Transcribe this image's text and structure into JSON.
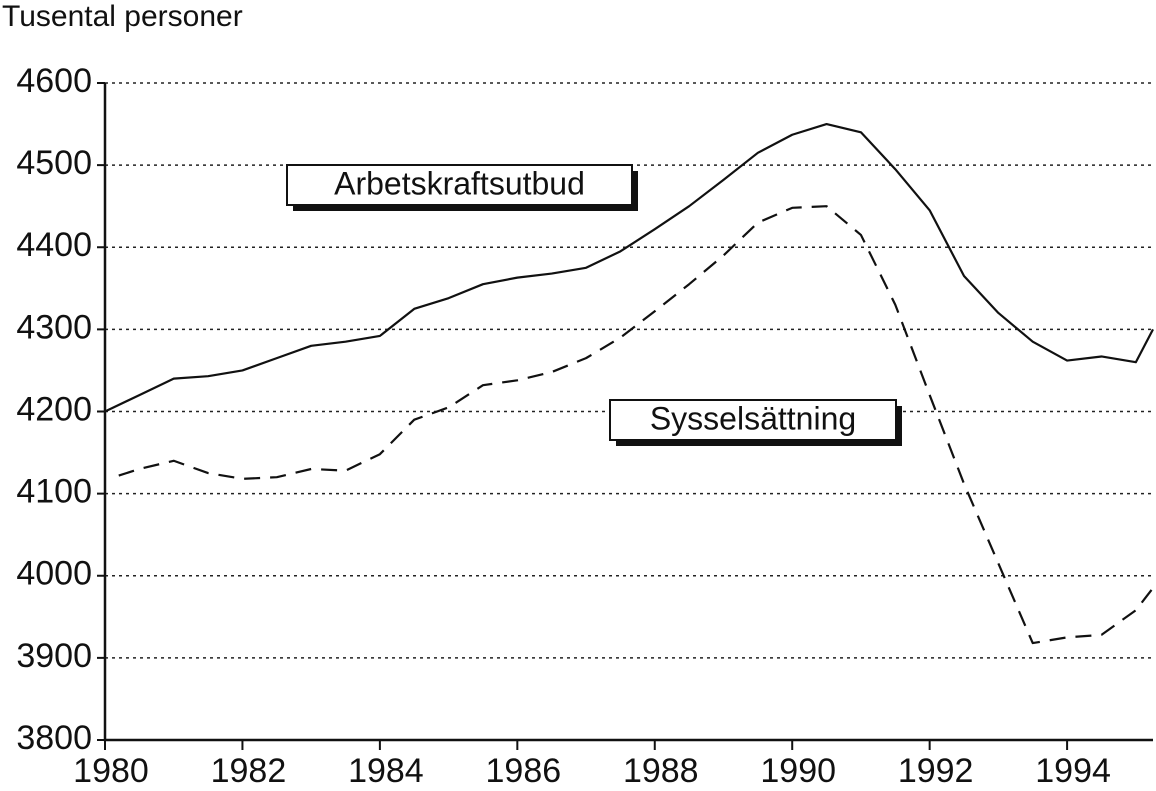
{
  "chart_data": {
    "type": "line",
    "ylabel": "Tusental personer",
    "xlim": [
      1980,
      1995.25
    ],
    "xticks": [
      1980,
      1982,
      1984,
      1986,
      1988,
      1990,
      1992,
      1994
    ],
    "ylim": [
      3800,
      4600
    ],
    "yticks": [
      3800,
      3900,
      4000,
      4100,
      4200,
      4300,
      4400,
      4500,
      4600
    ],
    "grid": true,
    "series": [
      {
        "name": "Arbetskraftsutbud",
        "color": "#111111",
        "dash": false,
        "x": [
          1980,
          1980.5,
          1981,
          1981.5,
          1982,
          1982.5,
          1983,
          1983.5,
          1984,
          1984.5,
          1985,
          1985.5,
          1986,
          1986.5,
          1987,
          1987.5,
          1988,
          1988.5,
          1989,
          1989.5,
          1990,
          1990.5,
          1991,
          1991.5,
          1992,
          1992.5,
          1993,
          1993.5,
          1994,
          1994.5,
          1995,
          1995.25
        ],
        "values": [
          4200,
          4220,
          4240,
          4243,
          4250,
          4265,
          4280,
          4285,
          4292,
          4325,
          4338,
          4355,
          4363,
          4368,
          4375,
          4395,
          4422,
          4450,
          4482,
          4515,
          4537,
          4550,
          4540,
          4495,
          4445,
          4365,
          4320,
          4285,
          4262,
          4267,
          4260,
          4300
        ]
      },
      {
        "name": "Sysselsättning",
        "color": "#111111",
        "dash": true,
        "x": [
          1980.2,
          1980.5,
          1981,
          1981.5,
          1982,
          1982.5,
          1983,
          1983.5,
          1984,
          1984.5,
          1985,
          1985.5,
          1986,
          1986.5,
          1987,
          1987.5,
          1988,
          1988.5,
          1989,
          1989.5,
          1990,
          1990.5,
          1991,
          1991.5,
          1992,
          1992.5,
          1993,
          1993.5,
          1994,
          1994.5,
          1995,
          1995.25
        ],
        "values": [
          4122,
          4130,
          4140,
          4125,
          4118,
          4120,
          4130,
          4128,
          4148,
          4190,
          4205,
          4232,
          4238,
          4248,
          4265,
          4290,
          4322,
          4355,
          4390,
          4430,
          4448,
          4450,
          4415,
          4330,
          4220,
          4112,
          4015,
          3918,
          3925,
          3928,
          3958,
          3985
        ]
      }
    ]
  }
}
